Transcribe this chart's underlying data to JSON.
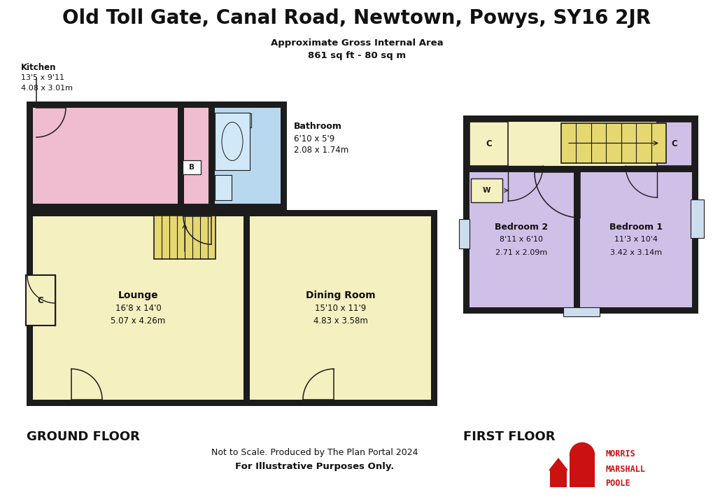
{
  "title": "Old Toll Gate, Canal Road, Newtown, Powys, SY16 2JR",
  "subtitle1": "Approximate Gross Internal Area",
  "subtitle2": "861 sq ft - 80 sq m",
  "bg_color": "#ffffff",
  "wall_color": "#1c1c1c",
  "floor_yellow": "#f5f0c0",
  "floor_pink": "#f0bcd0",
  "floor_blue": "#b8d8f0",
  "floor_lavender": "#cfc0e8",
  "ground_floor_label": "GROUND FLOOR",
  "first_floor_label": "FIRST FLOOR",
  "footer1": "Not to Scale. Produced by The Plan Portal 2024",
  "footer2": "For Illustrative Purposes Only.",
  "brand_color": "#cc1111",
  "kitchen_label": [
    "Kitchen",
    "13'5 x 9'11",
    "4.08 x 3.01m"
  ],
  "bathroom_label": [
    "Bathroom",
    "6'10 x 5'9",
    "2.08 x 1.74m"
  ],
  "lounge_label": [
    "Lounge",
    "16'8 x 14'0",
    "5.07 x 4.26m"
  ],
  "dining_label": [
    "Dining Room",
    "15'10 x 11'9",
    "4.83 x 3.58m"
  ],
  "bed1_label": [
    "Bedroom 1",
    "11'3 x 10'4",
    "3.42 x 3.14m"
  ],
  "bed2_label": [
    "Bedroom 2",
    "8'11 x 6'10",
    "2.71 x 2.09m"
  ]
}
